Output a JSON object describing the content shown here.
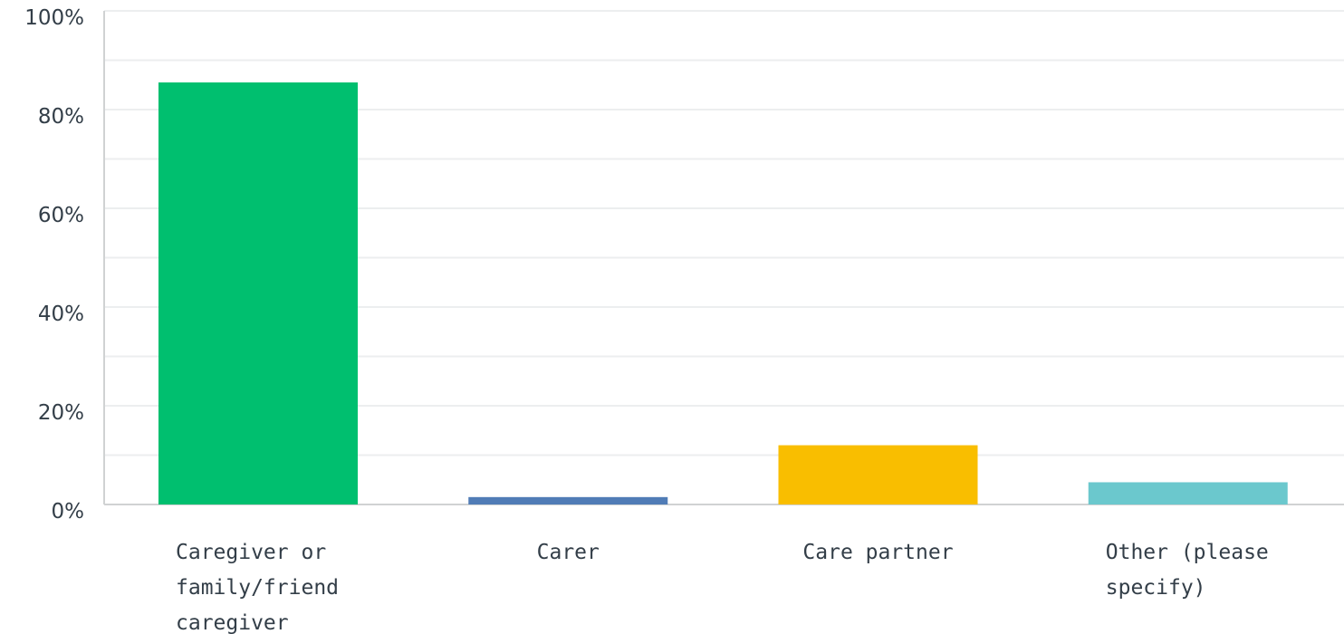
{
  "chart_data": {
    "type": "bar",
    "categories": [
      "Caregiver or family/friend caregiver",
      "Carer",
      "Care partner",
      "Other (please specify)"
    ],
    "category_lines": [
      [
        "Caregiver or",
        "family/friend",
        "caregiver"
      ],
      [
        "Carer"
      ],
      [
        "Care partner"
      ],
      [
        "Other (please",
        "specify)"
      ]
    ],
    "values": [
      85.5,
      1.5,
      12.0,
      4.5
    ],
    "ylim": [
      0,
      100
    ],
    "yticks": [
      0,
      20,
      40,
      60,
      80,
      100
    ],
    "ytick_labels": [
      "0%",
      "20%",
      "40%",
      "60%",
      "80%",
      "100%"
    ],
    "colors": [
      "#00bf6f",
      "#507cb6",
      "#f9be00",
      "#6bc8cd"
    ],
    "grid": true,
    "legend": "none"
  }
}
